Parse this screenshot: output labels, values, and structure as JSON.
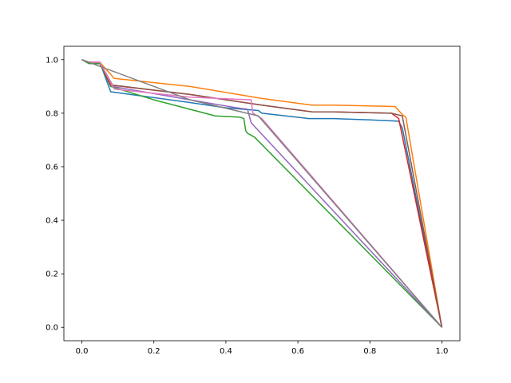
{
  "chart_data": {
    "type": "line",
    "title": "",
    "xlabel": "",
    "ylabel": "",
    "xlim": [
      -0.05,
      1.05
    ],
    "ylim": [
      -0.05,
      1.05
    ],
    "grid": false,
    "xticks": [
      0.0,
      0.2,
      0.4,
      0.6,
      0.8,
      1.0
    ],
    "yticks": [
      0.0,
      0.2,
      0.4,
      0.6,
      0.8,
      1.0
    ],
    "xtick_labels": [
      "0.0",
      "0.2",
      "0.4",
      "0.6",
      "0.8",
      "1.0"
    ],
    "ytick_labels": [
      "0.0",
      "0.2",
      "0.4",
      "0.6",
      "0.8",
      "1.0"
    ],
    "series": [
      {
        "color": "#1f77b4",
        "x": [
          0.0,
          0.02,
          0.05,
          0.08,
          0.3,
          0.4,
          0.49,
          0.5,
          0.63,
          0.7,
          0.8,
          0.88,
          0.89,
          1.0
        ],
        "y": [
          1.0,
          0.99,
          0.99,
          0.88,
          0.84,
          0.82,
          0.81,
          0.8,
          0.78,
          0.78,
          0.775,
          0.77,
          0.745,
          0.0
        ]
      },
      {
        "color": "#ff7f0e",
        "x": [
          0.0,
          0.02,
          0.05,
          0.09,
          0.3,
          0.5,
          0.64,
          0.7,
          0.87,
          0.89,
          0.9,
          1.0
        ],
        "y": [
          1.0,
          0.99,
          0.99,
          0.93,
          0.9,
          0.855,
          0.83,
          0.83,
          0.825,
          0.795,
          0.785,
          0.0
        ]
      },
      {
        "color": "#2ca02c",
        "x": [
          0.0,
          0.02,
          0.05,
          0.08,
          0.2,
          0.37,
          0.44,
          0.45,
          0.455,
          0.46,
          0.48,
          1.0
        ],
        "y": [
          1.0,
          0.985,
          0.985,
          0.9,
          0.85,
          0.79,
          0.785,
          0.78,
          0.735,
          0.725,
          0.71,
          0.0
        ]
      },
      {
        "color": "#d62728",
        "x": [
          0.0,
          0.02,
          0.05,
          0.08,
          0.3,
          0.5,
          0.64,
          0.7,
          0.86,
          0.88,
          1.0
        ],
        "y": [
          1.0,
          0.99,
          0.99,
          0.905,
          0.87,
          0.83,
          0.805,
          0.805,
          0.8,
          0.78,
          0.0
        ]
      },
      {
        "color": "#9467bd",
        "x": [
          0.0,
          0.02,
          0.05,
          0.085,
          0.3,
          0.43,
          0.46,
          0.47,
          0.48,
          1.0
        ],
        "y": [
          1.0,
          0.99,
          0.99,
          0.9,
          0.85,
          0.82,
          0.815,
          0.765,
          0.75,
          0.0
        ]
      },
      {
        "color": "#8c564b",
        "x": [
          0.0,
          0.02,
          0.05,
          0.085,
          0.3,
          0.5,
          0.64,
          0.7,
          0.86,
          0.89,
          1.0
        ],
        "y": [
          1.0,
          0.99,
          0.99,
          0.905,
          0.87,
          0.83,
          0.805,
          0.805,
          0.8,
          0.79,
          0.0
        ]
      },
      {
        "color": "#e377c2",
        "x": [
          0.0,
          0.02,
          0.05,
          0.09,
          0.3,
          0.47,
          0.475,
          0.5,
          1.0
        ],
        "y": [
          1.0,
          0.99,
          0.99,
          0.89,
          0.86,
          0.85,
          0.8,
          0.78,
          0.0
        ]
      },
      {
        "color": "#7f7f7f",
        "x": [
          0.0,
          0.3,
          0.49,
          1.0
        ],
        "y": [
          1.0,
          0.85,
          0.79,
          0.0
        ]
      }
    ]
  }
}
